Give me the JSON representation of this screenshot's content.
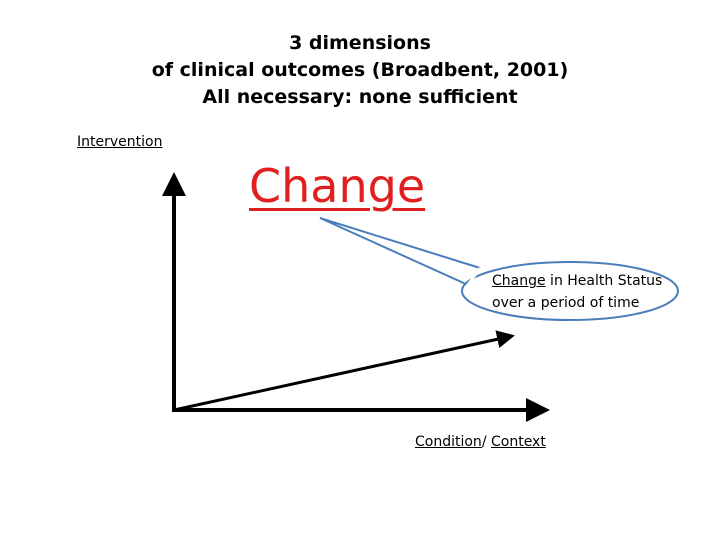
{
  "title": {
    "line1": "3 dimensions",
    "line2": "of clinical outcomes (Broadbent, 2001)",
    "line3": "All necessary: none sufficient"
  },
  "labels": {
    "intervention": "Intervention",
    "change": "Change",
    "condition": "Condition",
    "condition_sep": "/ ",
    "context": "Context"
  },
  "callout": {
    "line1_underlined": "Change",
    "line1_rest": " in Health Status",
    "line2": "over a period of time"
  },
  "colors": {
    "change_text": "#e02020",
    "callout_border": "#4a7ebb"
  }
}
